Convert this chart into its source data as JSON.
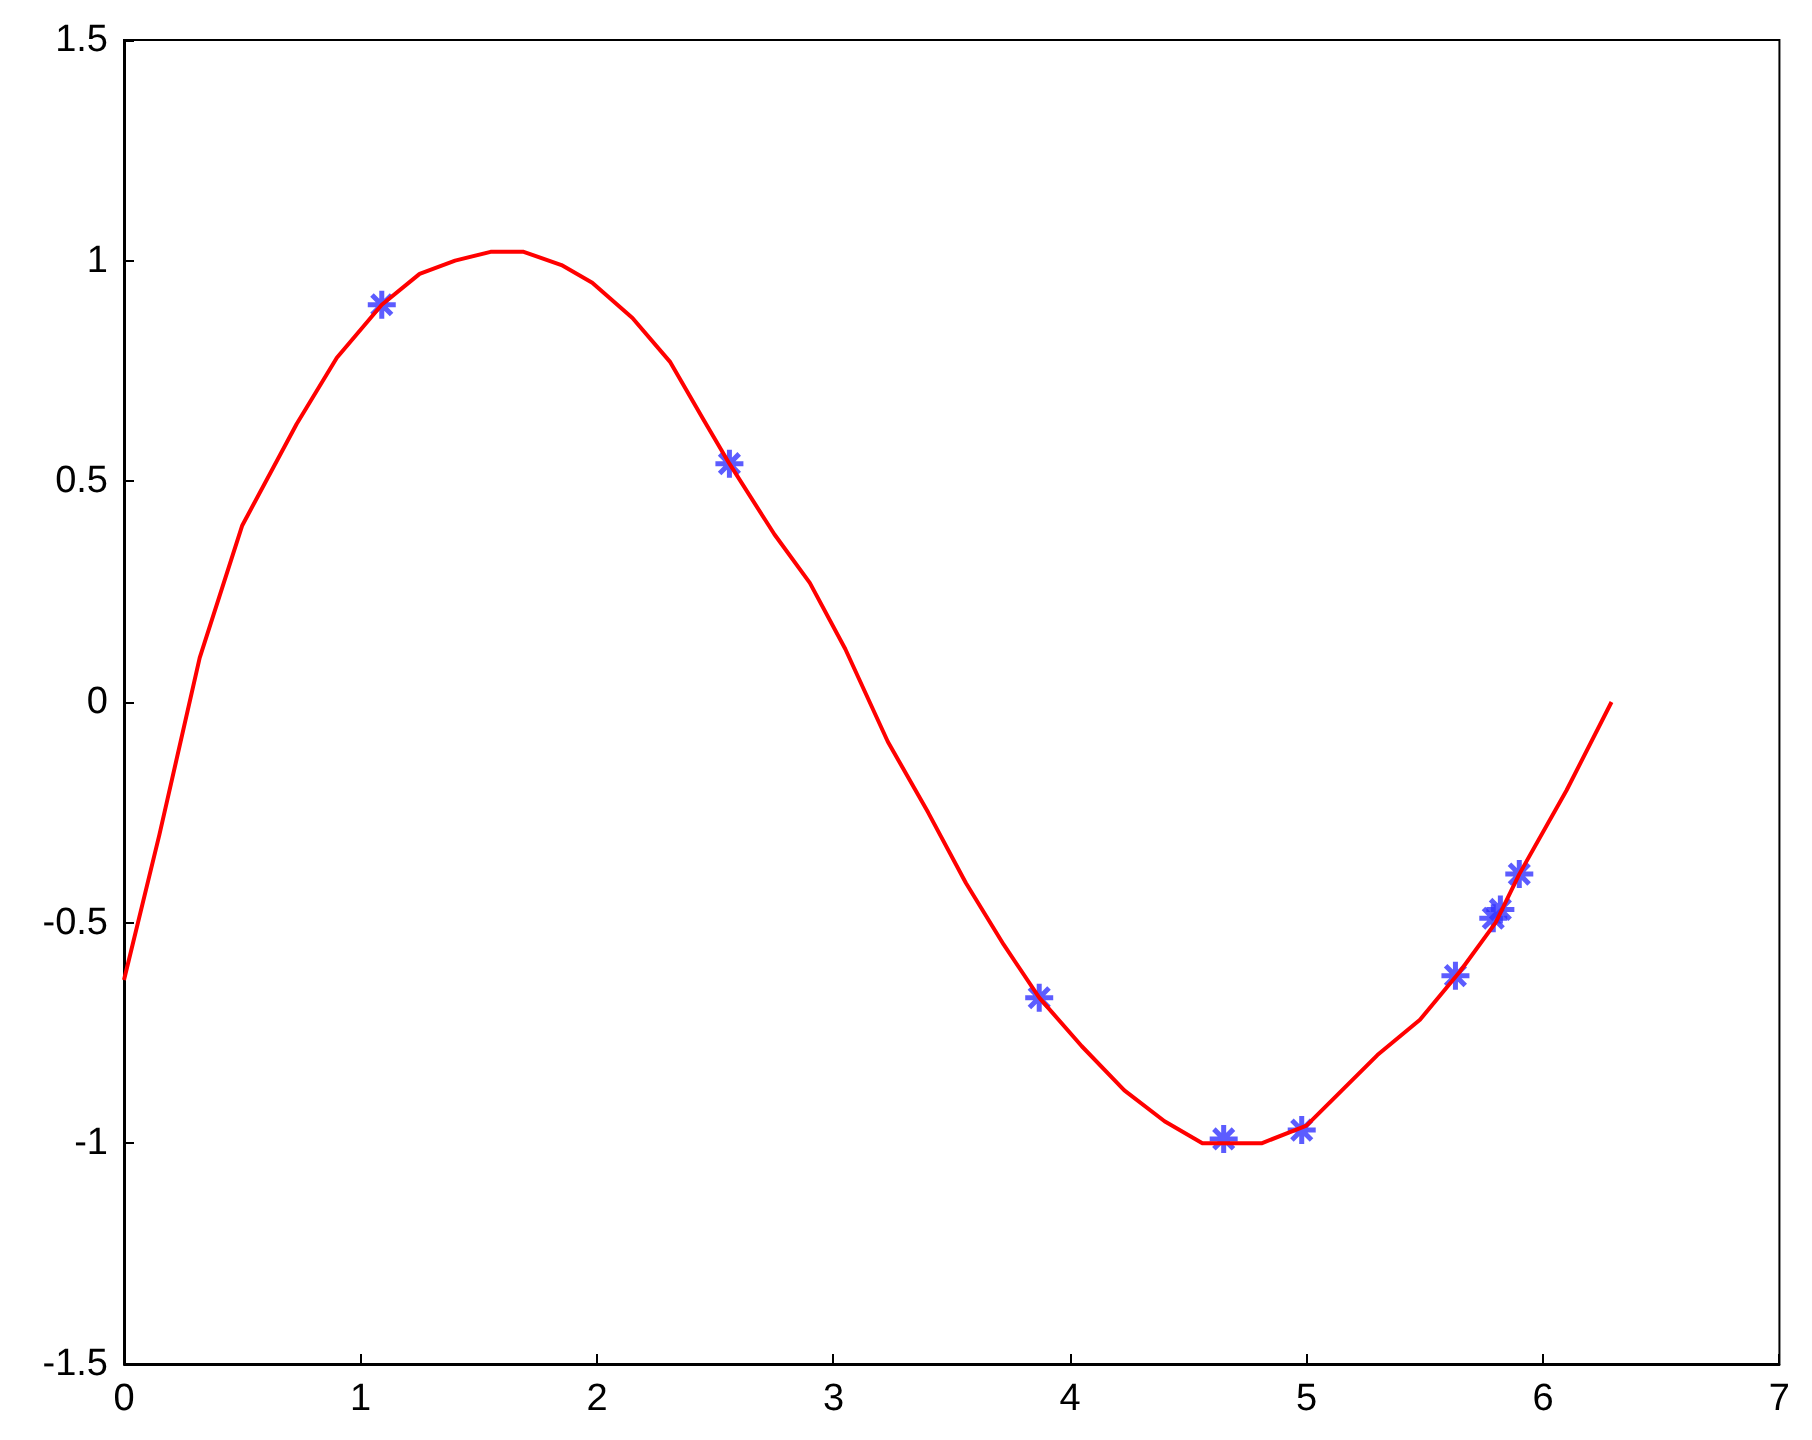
{
  "chart_data": {
    "type": "line",
    "xlim": [
      0,
      7
    ],
    "ylim": [
      -1.5,
      1.5
    ],
    "xticks": [
      0,
      1,
      2,
      3,
      4,
      5,
      6,
      7
    ],
    "yticks": [
      -1.5,
      -1,
      -0.5,
      0,
      0.5,
      1,
      1.5
    ],
    "grid": false,
    "series": [
      {
        "color": "#ff0000",
        "marker": "none",
        "line_style": "solid",
        "x": [
          0,
          0.15,
          0.32,
          0.5,
          0.73,
          0.9,
          1.09,
          1.25,
          1.4,
          1.55,
          1.69,
          1.85,
          1.98,
          2.15,
          2.31,
          2.45,
          2.56,
          2.75,
          2.9,
          3.05,
          3.23,
          3.4,
          3.56,
          3.72,
          3.87,
          4.05,
          4.23,
          4.4,
          4.56,
          4.7,
          4.81,
          5.0,
          5.15,
          5.3,
          5.48,
          5.65,
          5.8,
          5.9,
          6.1,
          6.29
        ],
        "values": [
          -0.63,
          -0.3,
          0.1,
          0.4,
          0.63,
          0.78,
          0.9,
          0.97,
          1.0,
          1.02,
          1.02,
          0.99,
          0.95,
          0.87,
          0.77,
          0.64,
          0.54,
          0.38,
          0.27,
          0.12,
          -0.09,
          -0.25,
          -0.41,
          -0.55,
          -0.67,
          -0.78,
          -0.88,
          -0.95,
          -1.0,
          -1.0,
          -1.0,
          -0.96,
          -0.88,
          -0.8,
          -0.72,
          -0.61,
          -0.5,
          -0.39,
          -0.2,
          0
        ]
      },
      {
        "type": "scatter",
        "color": "#3333ff",
        "marker": "cross",
        "x": [
          1.09,
          2.56,
          3.87,
          4.65,
          4.98,
          5.63,
          5.79,
          5.82,
          5.9
        ],
        "values": [
          0.9,
          0.54,
          -0.67,
          -0.99,
          -0.97,
          -0.62,
          -0.49,
          -0.47,
          -0.39
        ]
      }
    ]
  }
}
